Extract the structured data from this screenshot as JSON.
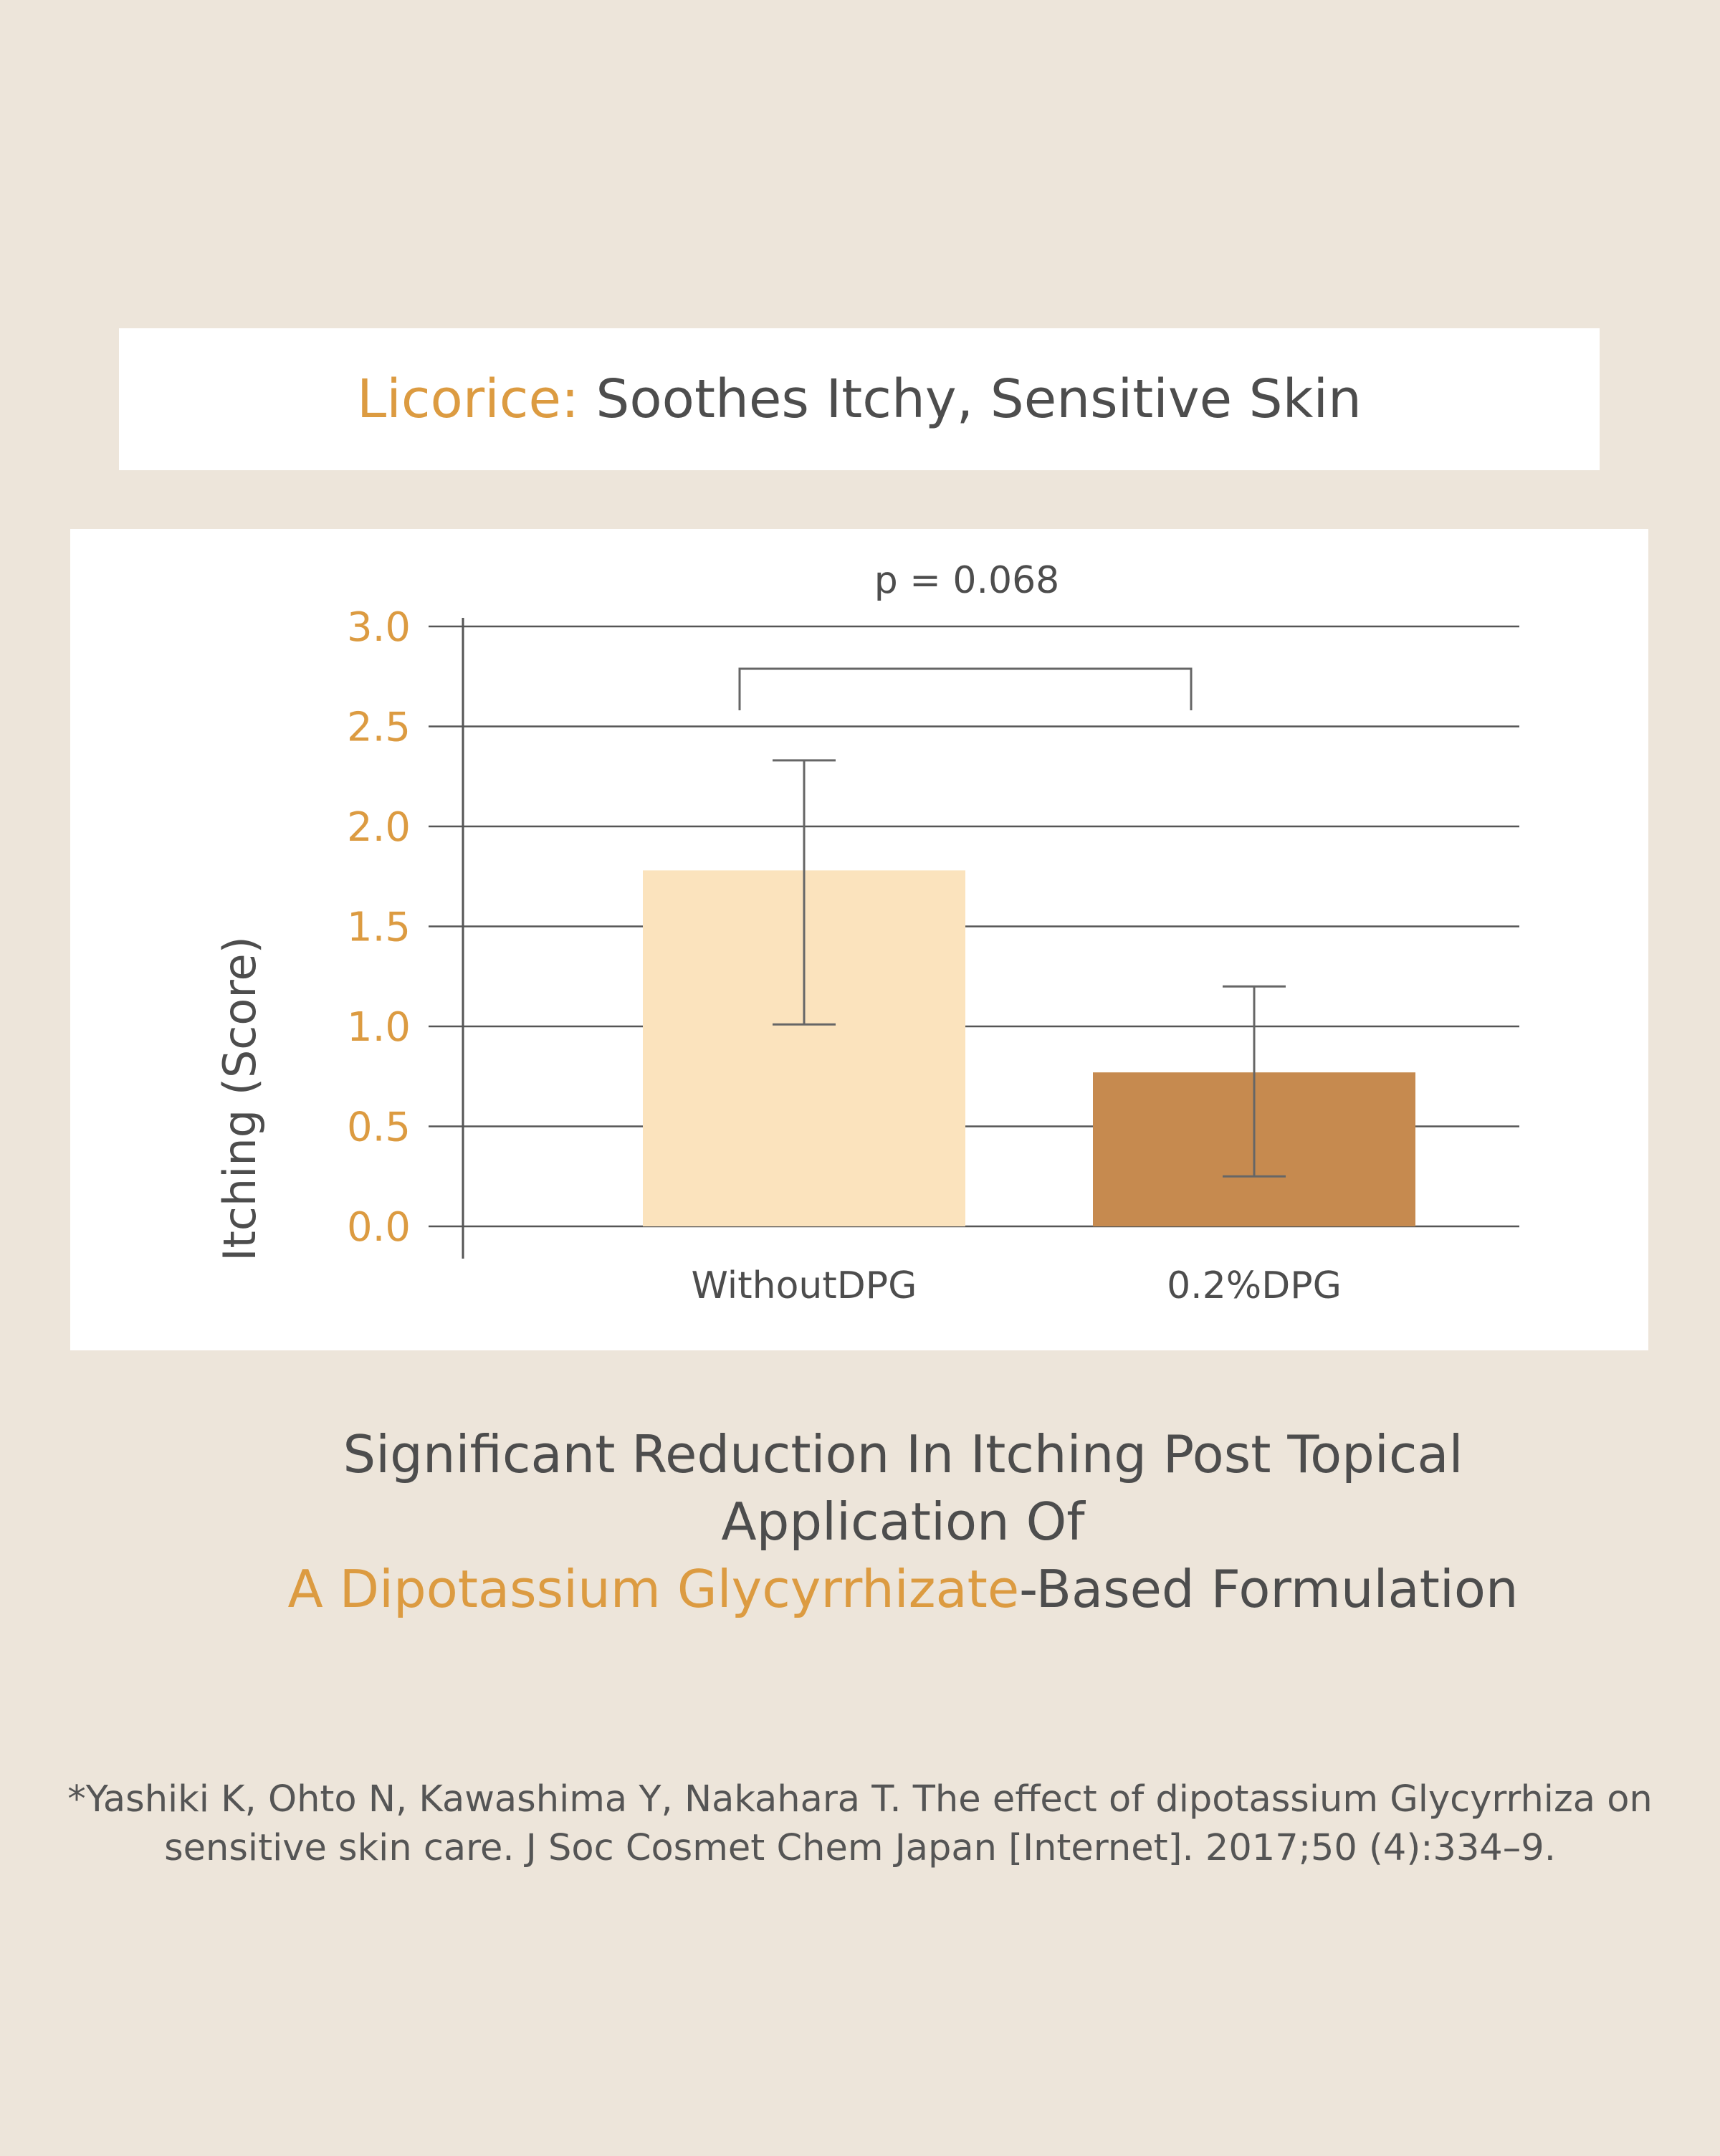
{
  "header": {
    "accent": "Licorice:",
    "title": " Soothes Itchy, Sensitive Skin"
  },
  "chart_data": {
    "type": "bar",
    "categories": [
      "WithoutDPG",
      "0.2%DPG"
    ],
    "values": [
      1.78,
      0.77
    ],
    "error_bars": [
      [
        1.01,
        2.33
      ],
      [
        0.25,
        1.2
      ]
    ],
    "ylabel": "Itching (Score)",
    "ylim": [
      0,
      3.0
    ],
    "yticks": [
      "0.0",
      "0.5",
      "1.0",
      "1.5",
      "2.0",
      "2.5",
      "3.0"
    ],
    "annotation": "p = 0.068",
    "grid": true,
    "bar_colors": [
      "#fbe3bd",
      "#c68a4f"
    ]
  },
  "caption": {
    "line1": "Significant Reduction In Itching Post Topical",
    "line2": "Application Of",
    "accent": "A Dipotassium Glycyrrhizate",
    "rest": "-Based Formulation"
  },
  "reference": {
    "line1": "*Yashiki K, Ohto N, Kawashima Y, Nakahara T. The effect of dipotassium Glycyrrhiza on",
    "line2": "sensitive skin care. J Soc Cosmet Chem Japan [Internet]. 2017;50 (4):334–9."
  },
  "colors": {
    "accent": "#dc9b41",
    "background": "#ede5da",
    "text": "#4d4d4d"
  }
}
